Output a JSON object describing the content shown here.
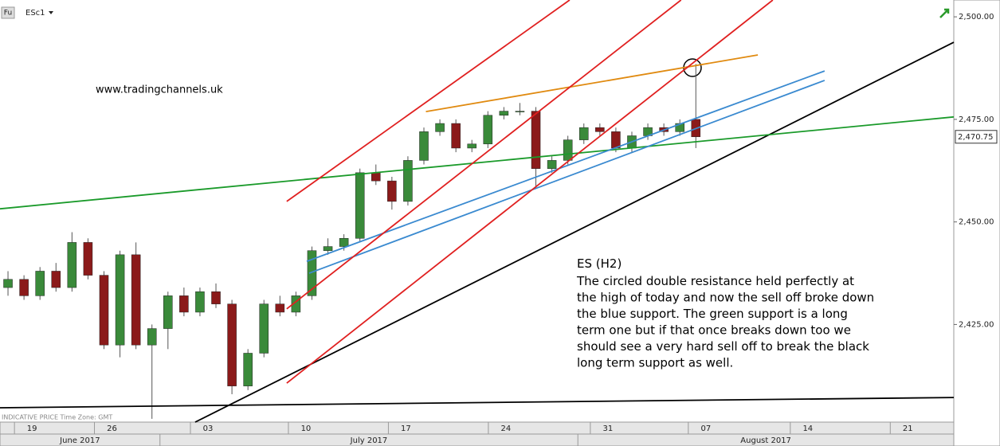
{
  "chart_data": {
    "type": "candlestick",
    "symbol_badge": "Fu",
    "symbol": "ESc1",
    "watermark": "www.tradingchannels.uk",
    "footer_note": "INDICATIVE PRICE   Time Zone: GMT",
    "note_title": "ES (H2)",
    "note_lines": [
      "The circled double resistance held perfectly at",
      "the high of today and now the sell off broke down",
      "the blue support. The green support is a long",
      "term one but if that once breaks down too we",
      "should see a very hard sell off to break the black",
      "long term support as well."
    ],
    "up_color": "#3a8a3a",
    "down_color": "#8b1a1a",
    "xlim": [
      0,
      47.7
    ],
    "ylim": [
      2401.2,
      2504.1
    ],
    "yticks": [
      {
        "value": 2425,
        "label": "2,425.00"
      },
      {
        "value": 2450,
        "label": "2,450.00"
      },
      {
        "value": 2475,
        "label": "2,475.00"
      },
      {
        "value": 2500,
        "label": "2,500.00"
      }
    ],
    "xticks": [
      {
        "value": 1.6,
        "label": "19"
      },
      {
        "value": 5.6,
        "label": "26"
      },
      {
        "value": 10.4,
        "label": "03"
      },
      {
        "value": 15.3,
        "label": "10"
      },
      {
        "value": 20.3,
        "label": "17"
      },
      {
        "value": 25.3,
        "label": "24"
      },
      {
        "value": 30.4,
        "label": "31"
      },
      {
        "value": 35.3,
        "label": "07"
      },
      {
        "value": 40.4,
        "label": "14"
      },
      {
        "value": 45.4,
        "label": "21"
      }
    ],
    "months": [
      {
        "start": 0,
        "end": 8,
        "label": "June 2017"
      },
      {
        "start": 8,
        "end": 28.9,
        "label": "July 2017"
      },
      {
        "start": 28.9,
        "end": 47.7,
        "label": "August 2017"
      }
    ],
    "last_price": {
      "value": 2470.75,
      "label": "2,470.75"
    },
    "x": [
      0.4,
      1.2,
      2.0,
      2.8,
      3.6,
      4.4,
      5.2,
      6.0,
      6.8,
      7.6,
      8.4,
      9.2,
      10.0,
      10.8,
      11.6,
      12.4,
      13.2,
      14.0,
      14.8,
      15.6,
      16.4,
      17.2,
      18.0,
      18.8,
      19.6,
      20.4,
      21.2,
      22.0,
      22.8,
      23.6,
      24.4,
      25.2,
      26.0,
      26.8,
      27.6,
      28.4,
      29.2,
      30.0,
      30.8,
      31.6,
      32.4,
      33.2,
      34.0,
      34.8
    ],
    "open": [
      2434,
      2436,
      2432,
      2438,
      2434,
      2445,
      2437,
      2420,
      2442,
      2420,
      2424,
      2432,
      2428,
      2433,
      2430,
      2410,
      2418,
      2430,
      2428,
      2432,
      2443,
      2444,
      2446,
      2462,
      2460,
      2455,
      2465,
      2472,
      2474,
      2468,
      2469,
      2476,
      2477,
      2477,
      2463,
      2465,
      2470,
      2473,
      2472,
      2468,
      2471,
      2473,
      2472,
      2475
    ],
    "high": [
      2438,
      2437,
      2439,
      2440,
      2447.5,
      2446,
      2438,
      2443,
      2445,
      2425,
      2433,
      2434,
      2434,
      2435,
      2431,
      2419,
      2431,
      2432,
      2433,
      2444,
      2446,
      2447,
      2463,
      2464,
      2461,
      2466,
      2473,
      2475,
      2475,
      2470,
      2477,
      2478,
      2479,
      2478,
      2466,
      2471,
      2474,
      2474,
      2473,
      2472,
      2474,
      2474,
      2475,
      2488.5
    ],
    "low": [
      2432,
      2431,
      2431,
      2433,
      2433,
      2436,
      2419,
      2417,
      2419,
      2402,
      2419,
      2427,
      2427,
      2429,
      2408,
      2409,
      2417,
      2427,
      2427,
      2431,
      2442,
      2443,
      2445,
      2459,
      2453,
      2454,
      2464,
      2471,
      2467,
      2467,
      2468,
      2475,
      2476,
      2458,
      2462,
      2464,
      2469,
      2471,
      2467,
      2467,
      2470,
      2471,
      2471,
      2468
    ],
    "close": [
      2436,
      2432,
      2438,
      2434,
      2445,
      2437,
      2420,
      2442,
      2420,
      2424,
      2432,
      2428,
      2433,
      2430,
      2410,
      2418,
      2430,
      2428,
      2432,
      2443,
      2444,
      2446,
      2462,
      2460,
      2455,
      2465,
      2472,
      2474,
      2468,
      2469,
      2476,
      2477,
      2477,
      2463,
      2465,
      2470,
      2473,
      2472,
      2468,
      2471,
      2473,
      2472,
      2474,
      2470.75
    ],
    "trendlines": [
      {
        "color": "#000000",
        "x": [
          0,
          47.7
        ],
        "y": [
          2404.7,
          2407.2
        ]
      },
      {
        "color": "#000000",
        "x": [
          9.76,
          47.7
        ],
        "y": [
          2401.2,
          2493.8
        ]
      },
      {
        "color": "#1a9a2a",
        "x": [
          0,
          47.7
        ],
        "y": [
          2453.2,
          2475.6
        ]
      },
      {
        "color": "#e08a10",
        "x": [
          21.3,
          37.9
        ],
        "y": [
          2476.9,
          2490.7
        ]
      },
      {
        "color": "#3a8ad0",
        "x": [
          15.34,
          41.24
        ],
        "y": [
          2440.4,
          2486.8
        ]
      },
      {
        "color": "#3a8ad0",
        "x": [
          15.46,
          41.24
        ],
        "y": [
          2437.5,
          2484.5
        ]
      },
      {
        "color": "#e02020",
        "x": [
          14.34,
          28.49
        ],
        "y": [
          2455.0,
          2504.1
        ]
      },
      {
        "color": "#e02020",
        "x": [
          14.34,
          34.06
        ],
        "y": [
          2428.8,
          2504.1
        ]
      },
      {
        "color": "#e02020",
        "x": [
          14.34,
          38.65
        ],
        "y": [
          2410.7,
          2504.1
        ]
      }
    ]
  }
}
